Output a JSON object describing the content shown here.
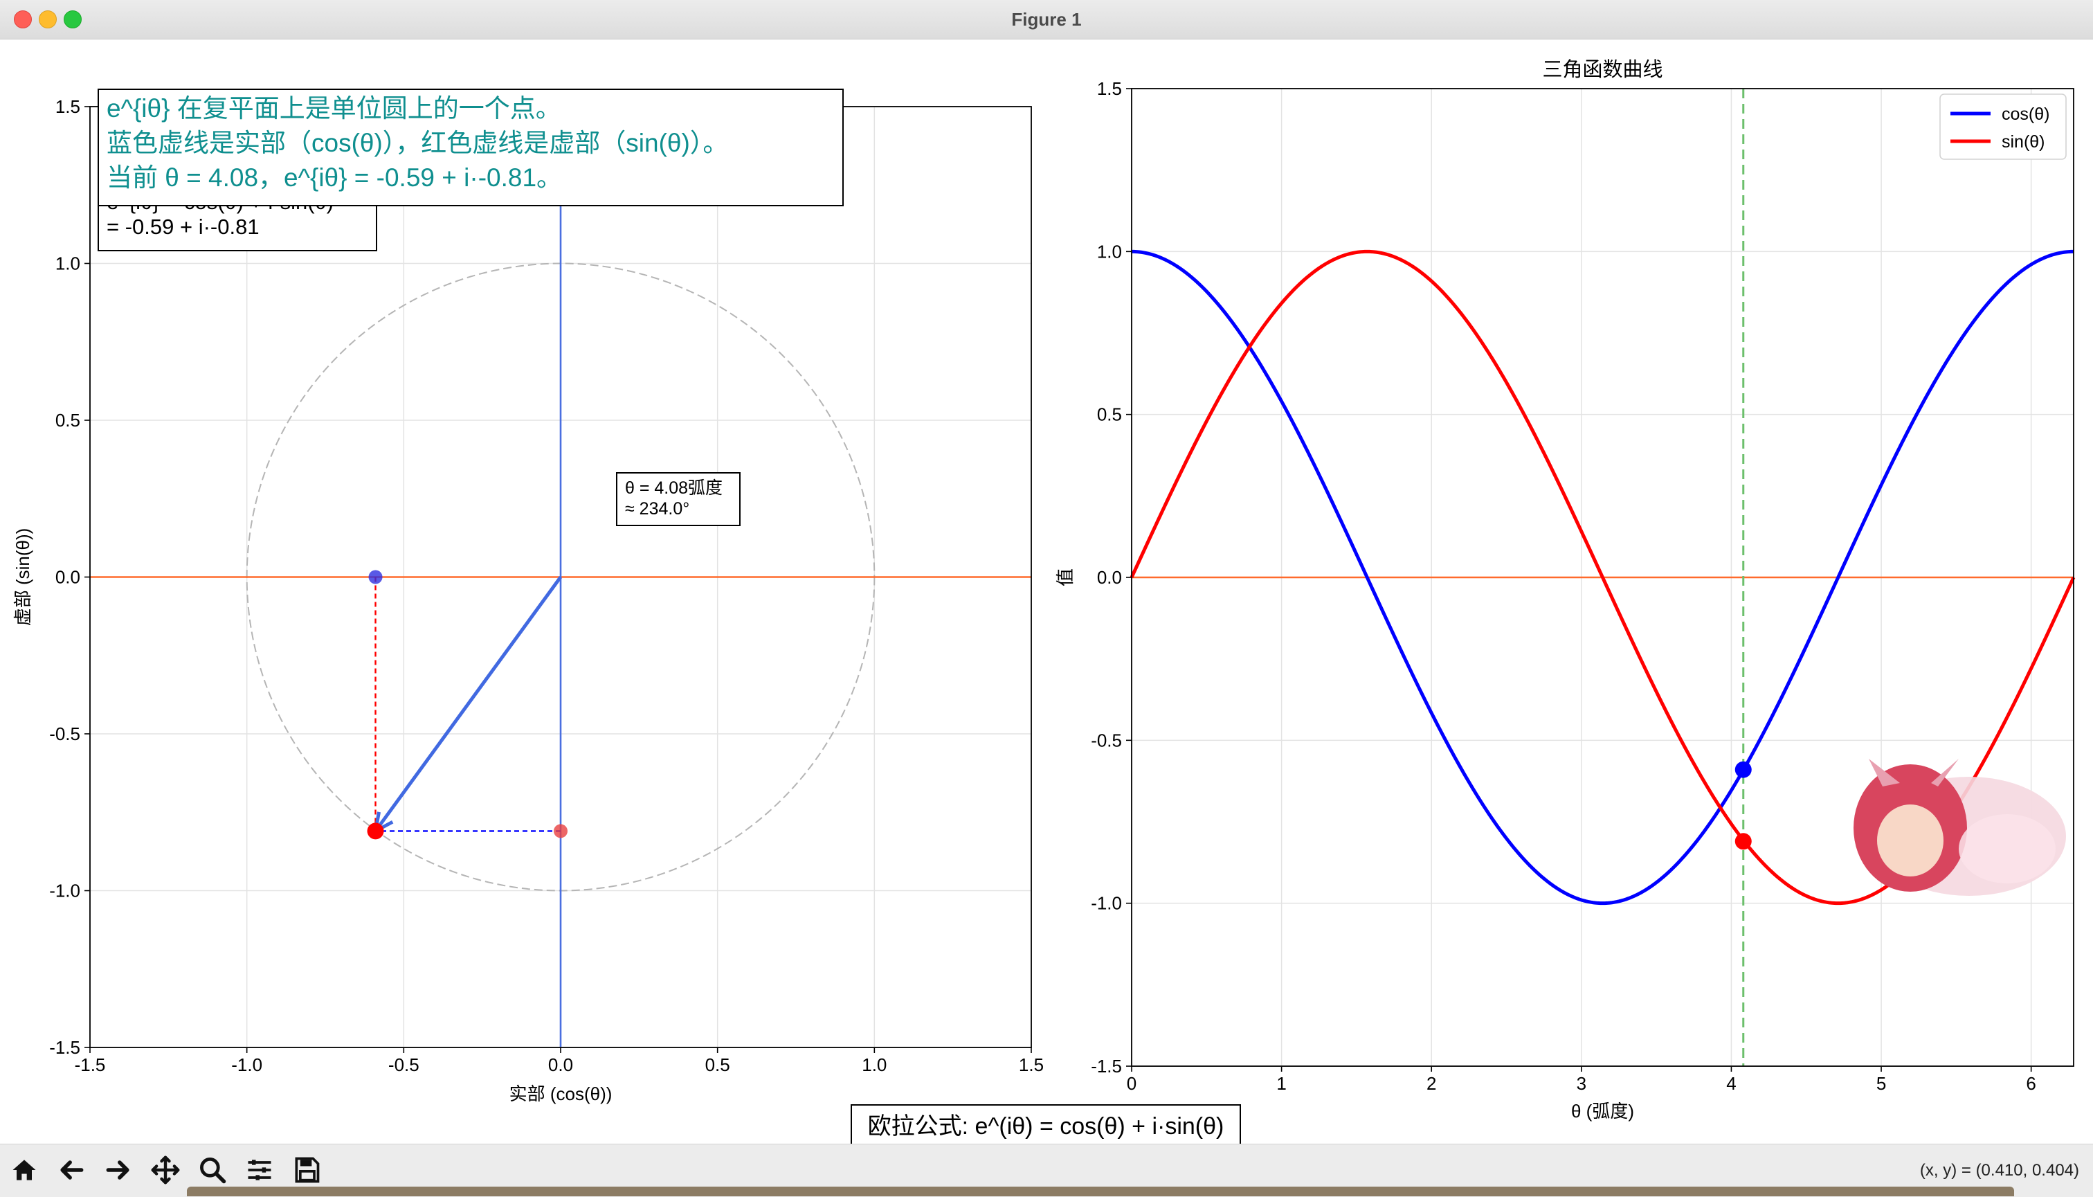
{
  "window": {
    "title": "Figure 1"
  },
  "chart_data": [
    {
      "type": "scatter",
      "xlabel": "实部 (cos(θ))",
      "ylabel": "虚部 (sin(θ))",
      "xlim": [
        -1.5,
        1.5
      ],
      "ylim": [
        -1.5,
        1.5
      ],
      "xticks": [
        "-1.5",
        "-1.0",
        "-0.5",
        "0.0",
        "0.5",
        "1.0",
        "1.5"
      ],
      "yticks": [
        "-1.5",
        "-1.0",
        "-0.5",
        "0.0",
        "0.5",
        "1.0",
        "1.5"
      ],
      "grid": true,
      "theta": 4.08,
      "unit_circle_radius": 1.0,
      "vector": {
        "from": [
          0,
          0
        ],
        "to": [
          -0.59,
          -0.81
        ],
        "color": "#4169e1"
      },
      "points": [
        {
          "x": -0.59,
          "y": -0.81,
          "color": "#ff0000"
        },
        {
          "x": -0.59,
          "y": 0.0,
          "color": "#3030e0"
        },
        {
          "x": 0.0,
          "y": -0.81,
          "color": "#e84040"
        }
      ],
      "formula_box": [
        "e^{iθ} = cos(θ) + i·sin(θ)",
        "= -0.59 + i·-0.81"
      ],
      "angle_box": [
        "θ = 4.08弧度",
        "≈ 234.0°"
      ],
      "explain_box": [
        "e^{iθ} 在复平面上是单位圆上的一个点。",
        "蓝色虚线是实部（cos(θ)），红色虚线是虚部（sin(θ)）。",
        "当前 θ = 4.08，e^{iθ} = -0.59 + i·-0.81。"
      ]
    },
    {
      "type": "line",
      "title": "三角函数曲线",
      "xlabel": "θ (弧度)",
      "ylabel": "值",
      "xlim": [
        0,
        6.2832
      ],
      "ylim": [
        -1.5,
        1.5
      ],
      "xticks": [
        "0",
        "1",
        "2",
        "3",
        "4",
        "5",
        "6"
      ],
      "yticks": [
        "-1.5",
        "-1.0",
        "-0.5",
        "0.0",
        "0.5",
        "1.0",
        "1.5"
      ],
      "grid": true,
      "legend_position": "top-right",
      "series": [
        {
          "name": "cos(θ)",
          "color": "#0000ff",
          "function": "cos",
          "x_range": [
            0,
            6.2832
          ]
        },
        {
          "name": "sin(θ)",
          "color": "#ff0000",
          "function": "sin",
          "x_range": [
            0,
            6.2832
          ]
        }
      ],
      "marker_theta": 4.08,
      "marker_points": [
        {
          "x": 4.08,
          "y": -0.59,
          "color": "#0000ff"
        },
        {
          "x": 4.08,
          "y": -0.81,
          "color": "#ff0000"
        }
      ]
    }
  ],
  "suptitle_box": "欧拉公式: e^(iθ) = cos(θ) + i·sin(θ)",
  "toolbar": {
    "buttons": [
      "home-icon",
      "back-icon",
      "forward-icon",
      "pan-icon",
      "zoom-icon",
      "configure-icon",
      "save-icon"
    ],
    "coord_readout": "(x, y) = (0.410, 0.404)"
  }
}
